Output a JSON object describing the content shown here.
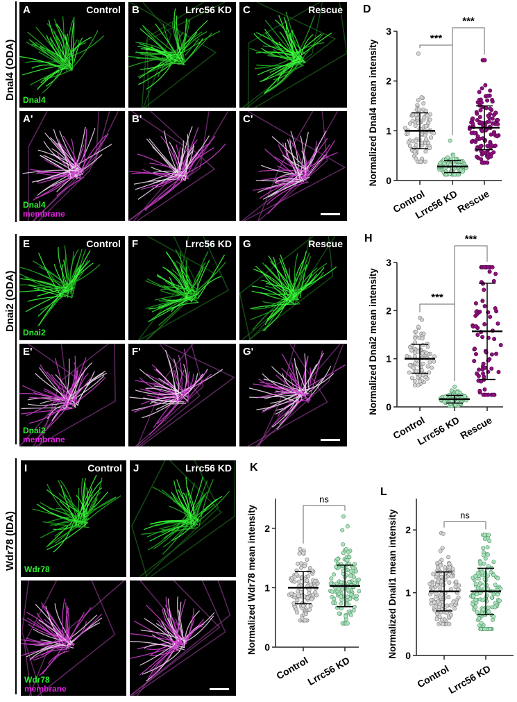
{
  "rows": [
    {
      "label": "Dnal4 (ODA)",
      "panels": [
        {
          "letter": "A",
          "condition": "Control",
          "channel": "Dnal4"
        },
        {
          "letter": "B",
          "condition": "Lrrc56 KD"
        },
        {
          "letter": "C",
          "condition": "Rescue"
        },
        {
          "letter": "A'",
          "channel": "Dnal4",
          "channel2": "membrane"
        },
        {
          "letter": "B'"
        },
        {
          "letter": "C'"
        }
      ]
    },
    {
      "label": "Dnai2 (ODA)",
      "panels": [
        {
          "letter": "E",
          "condition": "Control",
          "channel": "Dnai2"
        },
        {
          "letter": "F",
          "condition": "Lrrc56 KD"
        },
        {
          "letter": "G",
          "condition": "Rescue"
        },
        {
          "letter": "E'",
          "channel": "Dnai2",
          "channel2": "membrane"
        },
        {
          "letter": "F'"
        },
        {
          "letter": "G'"
        }
      ]
    },
    {
      "label": "Wdr78 (IDA)",
      "panels": [
        {
          "letter": "I",
          "condition": "Control",
          "channel": "Wdr78"
        },
        {
          "letter": "J",
          "condition": "Lrrc56 KD"
        },
        {
          "letter": "",
          "channel": "Wdr78",
          "channel2": "membrane"
        },
        {
          "letter": ""
        }
      ]
    }
  ],
  "colors": {
    "control": "#d4d4d4",
    "kd": "#a9e2bd",
    "rescue": "#8e0f7f",
    "green": "#2cf02c",
    "magenta": "#e020e0"
  },
  "chart_data": [
    {
      "letter": "D",
      "type": "scatter",
      "ylabel": "Normalized Dnal4 mean intensity",
      "ylim": [
        0,
        3
      ],
      "yticks": [
        "0",
        "1",
        "2",
        "3"
      ],
      "categories": [
        "Control",
        "Lrrc56 KD",
        "Rescue"
      ],
      "series": [
        {
          "name": "Control",
          "mean": 1.0,
          "sd": 0.36,
          "min": 0.38,
          "max": 2.55,
          "n": 90
        },
        {
          "name": "Lrrc56 KD",
          "mean": 0.28,
          "sd": 0.12,
          "min": 0.12,
          "max": 0.8,
          "n": 90
        },
        {
          "name": "Rescue",
          "mean": 1.06,
          "sd": 0.44,
          "min": 0.36,
          "max": 2.42,
          "n": 120
        }
      ],
      "comparisons": [
        {
          "a": 0,
          "b": 1,
          "label": "***"
        },
        {
          "a": 1,
          "b": 2,
          "label": "***"
        }
      ]
    },
    {
      "letter": "H",
      "type": "scatter",
      "ylabel": "Normalized Dnai2 mean intensity",
      "ylim": [
        0,
        3
      ],
      "yticks": [
        "0",
        "1",
        "2",
        "3"
      ],
      "categories": [
        "Control",
        "Lrrc56 KD",
        "Rescue"
      ],
      "series": [
        {
          "name": "Control",
          "mean": 1.0,
          "sd": 0.3,
          "min": 0.45,
          "max": 1.85,
          "n": 80
        },
        {
          "name": "Lrrc56 KD",
          "mean": 0.16,
          "sd": 0.08,
          "min": 0.02,
          "max": 0.42,
          "n": 80
        },
        {
          "name": "Rescue",
          "mean": 1.57,
          "sd": 1.0,
          "min": 0.25,
          "max": 2.9,
          "n": 80
        }
      ],
      "comparisons": [
        {
          "a": 0,
          "b": 1,
          "label": "***"
        },
        {
          "a": 1,
          "b": 2,
          "label": "***"
        }
      ]
    },
    {
      "letter": "K",
      "type": "scatter",
      "ylabel": "Normalized Wdr78 mean intensity",
      "ylim": [
        0,
        2.5
      ],
      "yticks": [
        "0",
        "1",
        "2"
      ],
      "categories": [
        "Control",
        "Lrrc56 KD"
      ],
      "series": [
        {
          "name": "Control",
          "mean": 1.0,
          "sd": 0.27,
          "min": 0.45,
          "max": 1.65,
          "n": 120
        },
        {
          "name": "Lrrc56 KD",
          "mean": 1.03,
          "sd": 0.35,
          "min": 0.4,
          "max": 2.2,
          "n": 130
        }
      ],
      "comparisons": [
        {
          "a": 0,
          "b": 1,
          "label": "ns"
        }
      ]
    },
    {
      "letter": "L",
      "type": "scatter",
      "ylabel": "Normalized Dnali1 mean intensity",
      "ylim": [
        0,
        2.5
      ],
      "yticks": [
        "0",
        "1",
        "2"
      ],
      "categories": [
        "Control",
        "Lrrc56 KD"
      ],
      "series": [
        {
          "name": "Control",
          "mean": 1.02,
          "sd": 0.31,
          "min": 0.5,
          "max": 1.95,
          "n": 140
        },
        {
          "name": "Lrrc56 KD",
          "mean": 1.02,
          "sd": 0.37,
          "min": 0.42,
          "max": 1.92,
          "n": 140
        }
      ],
      "comparisons": [
        {
          "a": 0,
          "b": 1,
          "label": "ns"
        }
      ]
    }
  ]
}
